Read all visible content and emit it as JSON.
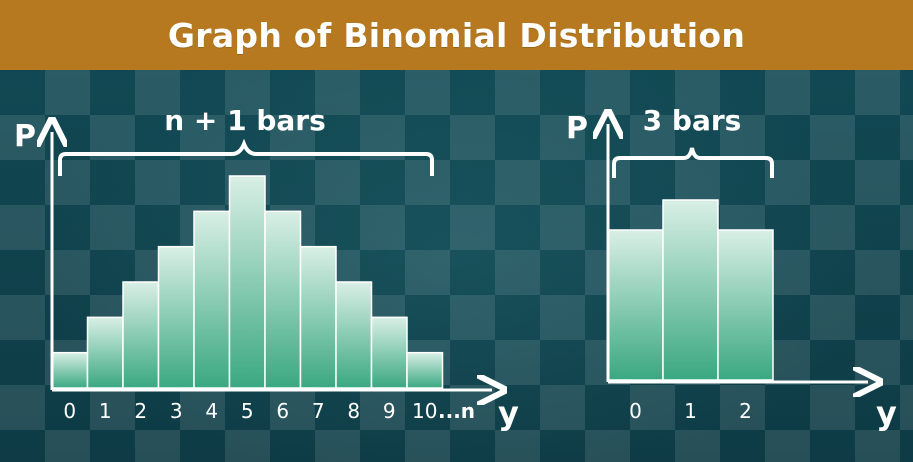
{
  "title": "Graph of Binomial Distribution",
  "colors": {
    "header": "#b6791f",
    "background": "#0f3f4a",
    "bar_top": "#d9efe6",
    "bar_bottom": "#3aa881",
    "text": "#ffffff"
  },
  "chart_data": [
    {
      "type": "bar",
      "categories": [
        "0",
        "1",
        "2",
        "3",
        "4",
        "5",
        "6",
        "7",
        "8",
        "9",
        "10"
      ],
      "values": [
        1,
        2,
        3,
        4,
        5,
        6,
        5,
        4,
        3,
        2,
        1
      ],
      "extra_tick_label": "...n",
      "xlabel": "y",
      "ylabel": "P",
      "annotation": "n + 1 bars",
      "ylim": [
        0,
        6
      ]
    },
    {
      "type": "bar",
      "categories": [
        "0",
        "1",
        "2"
      ],
      "values": [
        5,
        6,
        5
      ],
      "xlabel": "y",
      "ylabel": "P",
      "annotation": "3 bars",
      "ylim": [
        0,
        6
      ]
    }
  ]
}
